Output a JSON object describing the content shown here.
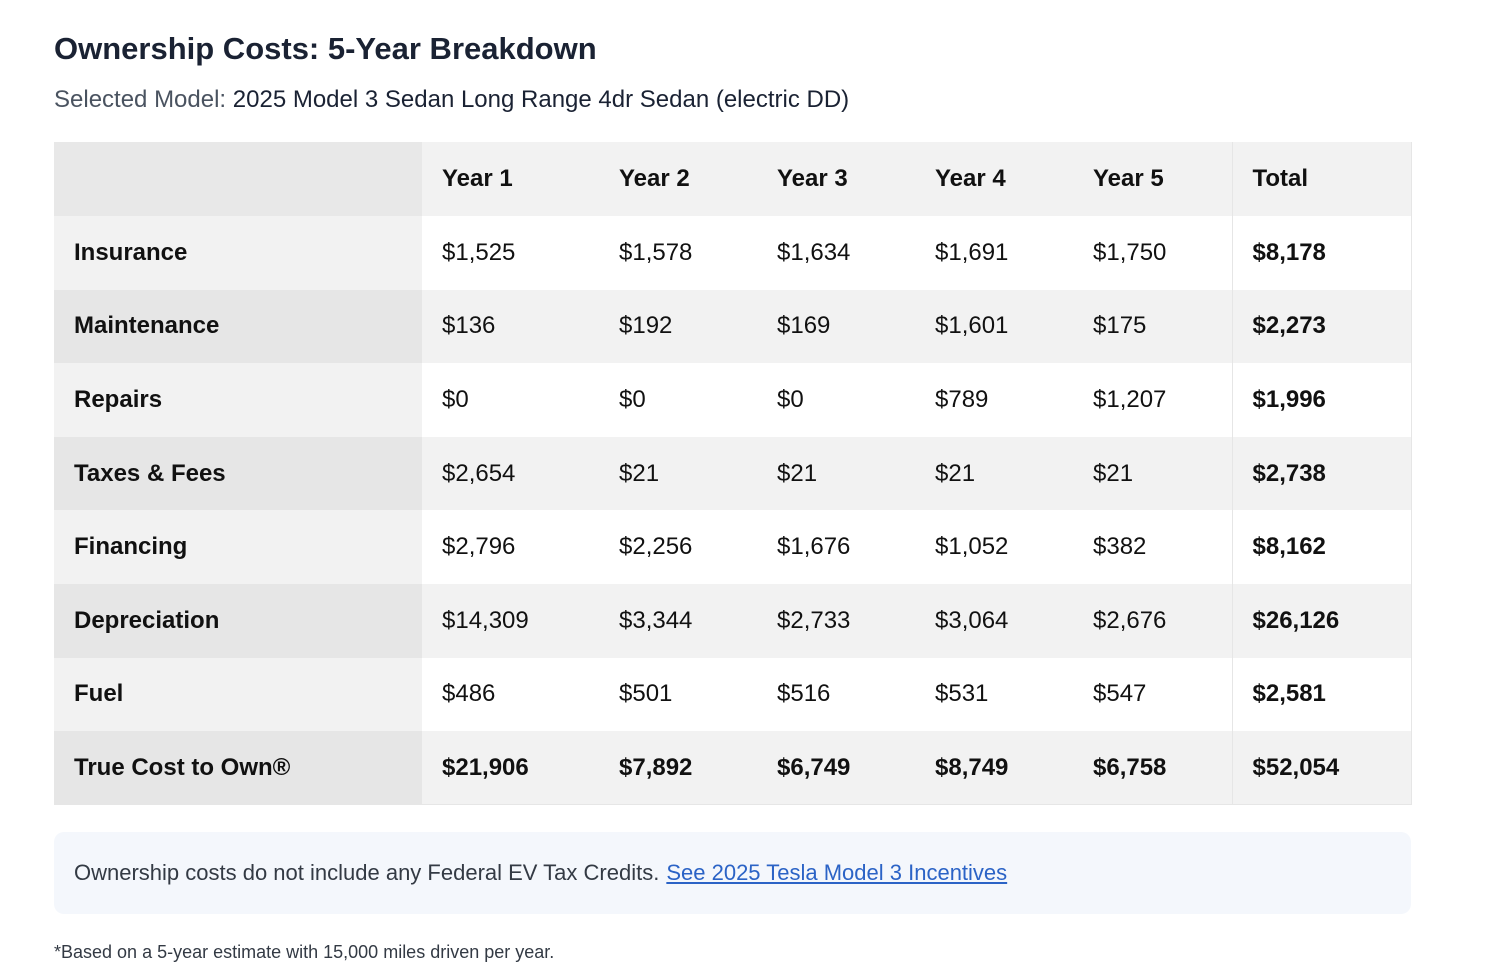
{
  "header": {
    "title": "Ownership Costs: 5-Year Breakdown",
    "selected_label": "Selected Model:",
    "selected_value": "2025 Model 3 Sedan Long Range 4dr Sedan (electric DD)"
  },
  "table": {
    "columns": [
      "Year 1",
      "Year 2",
      "Year 3",
      "Year 4",
      "Year 5",
      "Total"
    ],
    "rows": [
      {
        "label": "Insurance",
        "values": [
          "$1,525",
          "$1,578",
          "$1,634",
          "$1,691",
          "$1,750"
        ],
        "total": "$8,178"
      },
      {
        "label": "Maintenance",
        "values": [
          "$136",
          "$192",
          "$169",
          "$1,601",
          "$175"
        ],
        "total": "$2,273"
      },
      {
        "label": "Repairs",
        "values": [
          "$0",
          "$0",
          "$0",
          "$789",
          "$1,207"
        ],
        "total": "$1,996"
      },
      {
        "label": "Taxes & Fees",
        "values": [
          "$2,654",
          "$21",
          "$21",
          "$21",
          "$21"
        ],
        "total": "$2,738"
      },
      {
        "label": "Financing",
        "values": [
          "$2,796",
          "$2,256",
          "$1,676",
          "$1,052",
          "$382"
        ],
        "total": "$8,162"
      },
      {
        "label": "Depreciation",
        "values": [
          "$14,309",
          "$3,344",
          "$2,733",
          "$3,064",
          "$2,676"
        ],
        "total": "$26,126"
      },
      {
        "label": "Fuel",
        "values": [
          "$486",
          "$501",
          "$516",
          "$531",
          "$547"
        ],
        "total": "$2,581"
      },
      {
        "label": "True Cost to Own®",
        "values": [
          "$21,906",
          "$7,892",
          "$6,749",
          "$8,749",
          "$6,758"
        ],
        "total": "$52,054"
      }
    ]
  },
  "notice": {
    "text": "Ownership costs do not include any Federal EV Tax Credits.",
    "link_label": "See 2025 Tesla Model 3 Incentives"
  },
  "footnote": "*Based on a 5-year estimate with 15,000 miles driven per year.",
  "colors": {
    "link": "#2b63c6",
    "notice_bg": "#f4f7fc",
    "row_shade": "#f2f2f2",
    "label_shade": "#e6e6e6"
  }
}
